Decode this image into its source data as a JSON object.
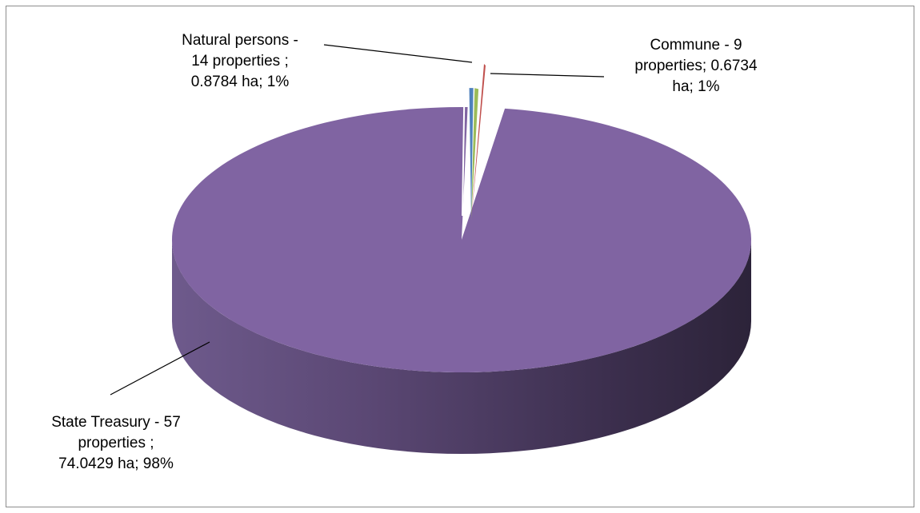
{
  "chart_data": {
    "type": "pie",
    "style": "3d-exploded",
    "slices": [
      {
        "name": "Natural persons",
        "properties": 14,
        "area_ha": 0.8784,
        "percent": 1,
        "color": "#4f81bd",
        "label_lines": [
          "Natural persons -",
          "14 properties ;",
          "0.8784 ha; 1%"
        ]
      },
      {
        "name": "Commune",
        "properties": 9,
        "area_ha": 0.6734,
        "percent": 1,
        "color": "#9bbb59",
        "label_lines": [
          "Commune  -  9",
          "properties; 0.6734",
          "ha; 1%"
        ]
      },
      {
        "name": "State Treasury",
        "properties": 57,
        "area_ha": 74.0429,
        "percent": 98,
        "color": "#8064a2",
        "label_lines": [
          "State Treasury - 57",
          "properties ;",
          "74.0429 ha; 98%"
        ]
      }
    ],
    "extra_thin_slice_color": "#c0504d",
    "legend": "none"
  }
}
